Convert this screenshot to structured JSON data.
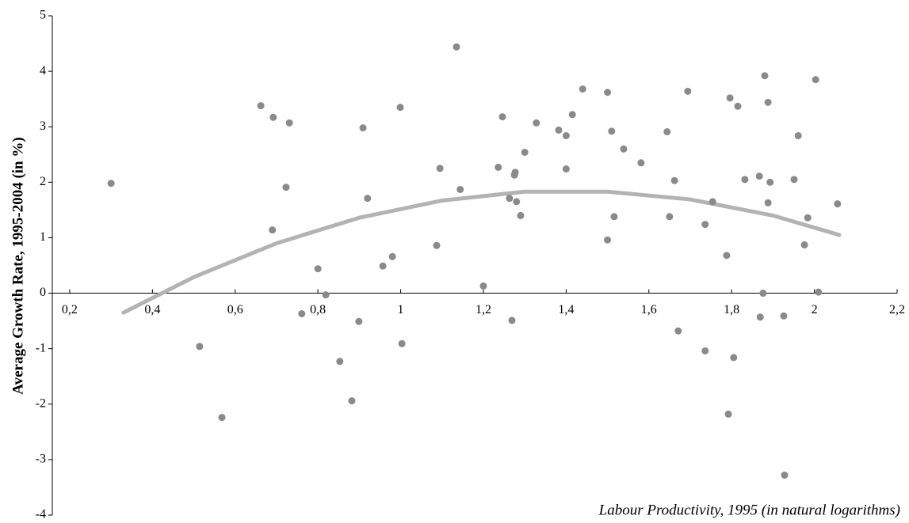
{
  "chart_data": {
    "type": "scatter",
    "y_label": "Average Growth Rate, 1995-2004 (in %)",
    "x_label": "Labour Productivity, 1995 (in natural logarithms)",
    "xlim": [
      0.158,
      2.2
    ],
    "ylim": [
      -4,
      5
    ],
    "xticks": [
      {
        "value": 0.2,
        "label": "0,2"
      },
      {
        "value": 0.4,
        "label": "0,4"
      },
      {
        "value": 0.6,
        "label": "0,6"
      },
      {
        "value": 0.8,
        "label": "0,8"
      },
      1,
      {
        "value": 1.2,
        "label": "1,2"
      },
      {
        "value": 1.4,
        "label": "1,4"
      },
      {
        "value": 1.6,
        "label": "1,6"
      },
      {
        "value": 1.8,
        "label": "1,8"
      },
      2,
      {
        "value": 2.2,
        "label": "2,2"
      }
    ],
    "yticks": [
      5,
      4,
      3,
      2,
      1,
      0,
      -1,
      -2,
      -3,
      -4
    ],
    "points": {
      "color": "#8a8a8a",
      "x": [
        0.3,
        0.514,
        0.568,
        0.662,
        0.692,
        0.69,
        0.723,
        0.731,
        0.761,
        0.8,
        0.819,
        0.853,
        0.882,
        0.899,
        0.909,
        0.92,
        0.957,
        0.98,
        0.999,
        1.003,
        1.087,
        1.095,
        1.135,
        1.144,
        1.2,
        1.236,
        1.246,
        1.263,
        1.269,
        1.275,
        1.277,
        1.28,
        1.29,
        1.3,
        1.328,
        1.382,
        1.4,
        1.4,
        1.415,
        1.44,
        1.5,
        1.5,
        1.51,
        1.516,
        1.539,
        1.581,
        1.644,
        1.65,
        1.662,
        1.671,
        1.694,
        1.736,
        1.736,
        1.754,
        1.788,
        1.792,
        1.796,
        1.805,
        1.815,
        1.832,
        1.867,
        1.869,
        1.876,
        1.88,
        1.888,
        1.888,
        1.893,
        1.926,
        1.928,
        1.951,
        1.961,
        1.976,
        1.984,
        2.003,
        2.01,
        2.056
      ],
      "y": [
        1.98,
        -0.96,
        -2.24,
        3.38,
        3.17,
        1.14,
        1.91,
        3.07,
        -0.37,
        0.44,
        -0.03,
        -1.23,
        -1.94,
        -0.51,
        2.98,
        1.71,
        0.49,
        0.66,
        3.35,
        -0.91,
        0.86,
        2.25,
        4.44,
        1.87,
        0.13,
        2.27,
        3.18,
        1.71,
        -0.49,
        2.13,
        2.18,
        1.65,
        1.4,
        2.54,
        3.07,
        2.94,
        2.84,
        2.24,
        3.22,
        3.68,
        0.96,
        3.62,
        2.92,
        1.38,
        2.6,
        2.35,
        2.91,
        1.38,
        2.03,
        -0.68,
        3.64,
        1.24,
        -1.04,
        1.65,
        0.68,
        -2.18,
        3.52,
        -1.16,
        3.37,
        2.05,
        2.11,
        -0.43,
        0.0,
        3.92,
        3.44,
        1.63,
        2.0,
        -0.41,
        -3.28,
        2.05,
        2.84,
        0.87,
        1.36,
        3.85,
        0.02,
        1.61
      ]
    },
    "trend": {
      "color": "#b3b3b3",
      "x": [
        0.33,
        0.5,
        0.7,
        0.9,
        1.1,
        1.3,
        1.5,
        1.7,
        1.9,
        2.06
      ],
      "y": [
        -0.35,
        0.29,
        0.9,
        1.36,
        1.67,
        1.83,
        1.83,
        1.69,
        1.4,
        1.05
      ]
    }
  }
}
